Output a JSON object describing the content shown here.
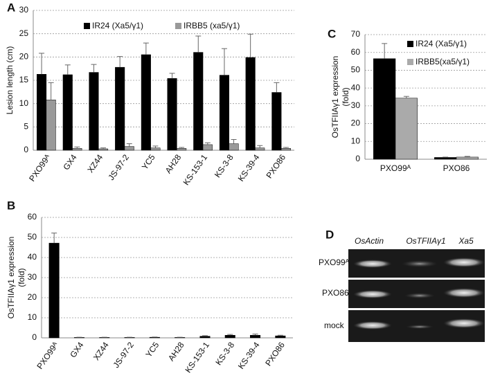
{
  "chart_data": [
    {
      "type": "bar",
      "label": "A",
      "y_label": [
        "Lesion length (cm)"
      ],
      "categories": [
        "PXO99ᴬ",
        "GX4",
        "XZ44",
        "JS-97-2",
        "YC5",
        "AH28",
        "KS-153-1",
        "KS-3-8",
        "KS-39-4",
        "PXO86"
      ],
      "series": [
        {
          "name": "IR24 (Xa5/γ1)",
          "color": "#000000",
          "values": [
            16.3,
            16.2,
            16.7,
            17.8,
            20.5,
            15.4,
            21.0,
            16.1,
            19.9,
            12.4
          ],
          "errors": [
            4.5,
            2.1,
            1.7,
            2.3,
            2.5,
            1.1,
            3.5,
            5.7,
            5.0,
            2.1
          ]
        },
        {
          "name": "IRBB5 (xa5/γ1)",
          "color": "#999999",
          "values": [
            10.8,
            0.4,
            0.3,
            0.8,
            0.5,
            0.4,
            1.2,
            1.4,
            0.5,
            0.4
          ],
          "errors": [
            3.7,
            0.3,
            0.2,
            0.6,
            0.4,
            0.2,
            0.4,
            0.9,
            0.5,
            0.2
          ]
        }
      ],
      "ylim": [
        0,
        30
      ],
      "yticks": [
        0,
        5,
        10,
        15,
        20,
        25,
        30
      ],
      "grid": true,
      "legend": "top"
    },
    {
      "type": "bar",
      "label": "B",
      "y_label": [
        "OsTFIIAγ1 expression",
        "(fold)"
      ],
      "categories": [
        "PXO99ᴬ",
        "GX4",
        "XZ44",
        "JS-97-2",
        "YC5",
        "AH28",
        "KS-153-1",
        "KS-3-8",
        "KS-39-4",
        "PXO86"
      ],
      "series": [
        {
          "color": "#000000",
          "values": [
            47.2,
            0.2,
            0.2,
            0.2,
            0.3,
            0.2,
            0.8,
            1.3,
            1.3,
            1.0
          ],
          "errors": [
            5.0,
            0.1,
            0.1,
            0.1,
            0.1,
            0.1,
            0.3,
            0.4,
            0.6,
            0.3
          ]
        }
      ],
      "ylim": [
        0,
        60
      ],
      "yticks": [
        0,
        10,
        20,
        30,
        40,
        50,
        60
      ],
      "grid": true
    },
    {
      "type": "bar",
      "label": "C",
      "y_label": [
        "OsTFIIAγ1 expression",
        "(fold)"
      ],
      "categories": [
        "PXO99ᴬ",
        "PXO86"
      ],
      "series": [
        {
          "name": "IR24 (Xa5/γ1)",
          "color": "#000000",
          "values": [
            56.5,
            1.0
          ],
          "errors": [
            8.5,
            0.2
          ]
        },
        {
          "name": "IRBB5(xa5/γ1)",
          "color": "#aaaaaa",
          "values": [
            34.3,
            1.2
          ],
          "errors": [
            1.0,
            0.4
          ]
        }
      ],
      "ylim": [
        0,
        70
      ],
      "yticks": [
        0,
        10,
        20,
        30,
        40,
        50,
        60,
        70
      ],
      "grid": true,
      "legend": "top right"
    }
  ],
  "gel": {
    "label": "D",
    "columns": [
      "OsActin",
      "OsTFIIAγ1",
      "Xa5"
    ],
    "rows": [
      "PXO99ᴬ",
      "PXO86",
      "mock"
    ]
  }
}
